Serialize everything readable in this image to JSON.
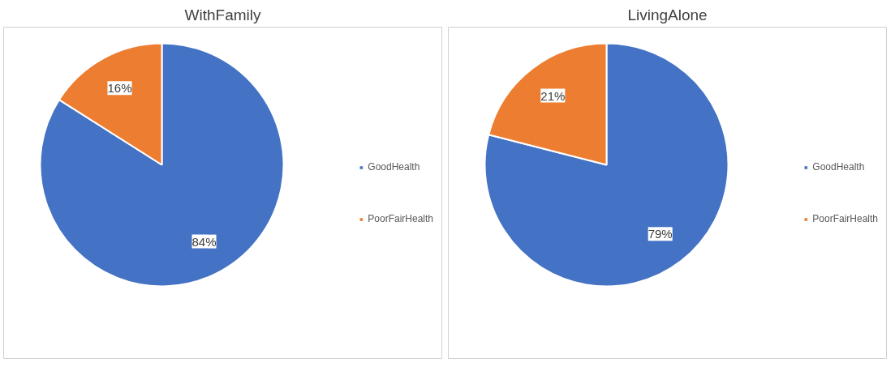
{
  "chart_data": [
    {
      "type": "pie",
      "title": "WithFamily",
      "categories": [
        "GoodHealth",
        "PoorFairHealth"
      ],
      "values": [
        84,
        16
      ],
      "colors": [
        "#4472c4",
        "#ed7d31"
      ],
      "value_labels": [
        "84%",
        "16%"
      ],
      "legend": "right"
    },
    {
      "type": "pie",
      "title": "LivingAlone",
      "categories": [
        "GoodHealth",
        "PoorFairHealth"
      ],
      "values": [
        79,
        21
      ],
      "colors": [
        "#4472c4",
        "#ed7d31"
      ],
      "value_labels": [
        "79%",
        "21%"
      ],
      "legend": "right"
    }
  ]
}
